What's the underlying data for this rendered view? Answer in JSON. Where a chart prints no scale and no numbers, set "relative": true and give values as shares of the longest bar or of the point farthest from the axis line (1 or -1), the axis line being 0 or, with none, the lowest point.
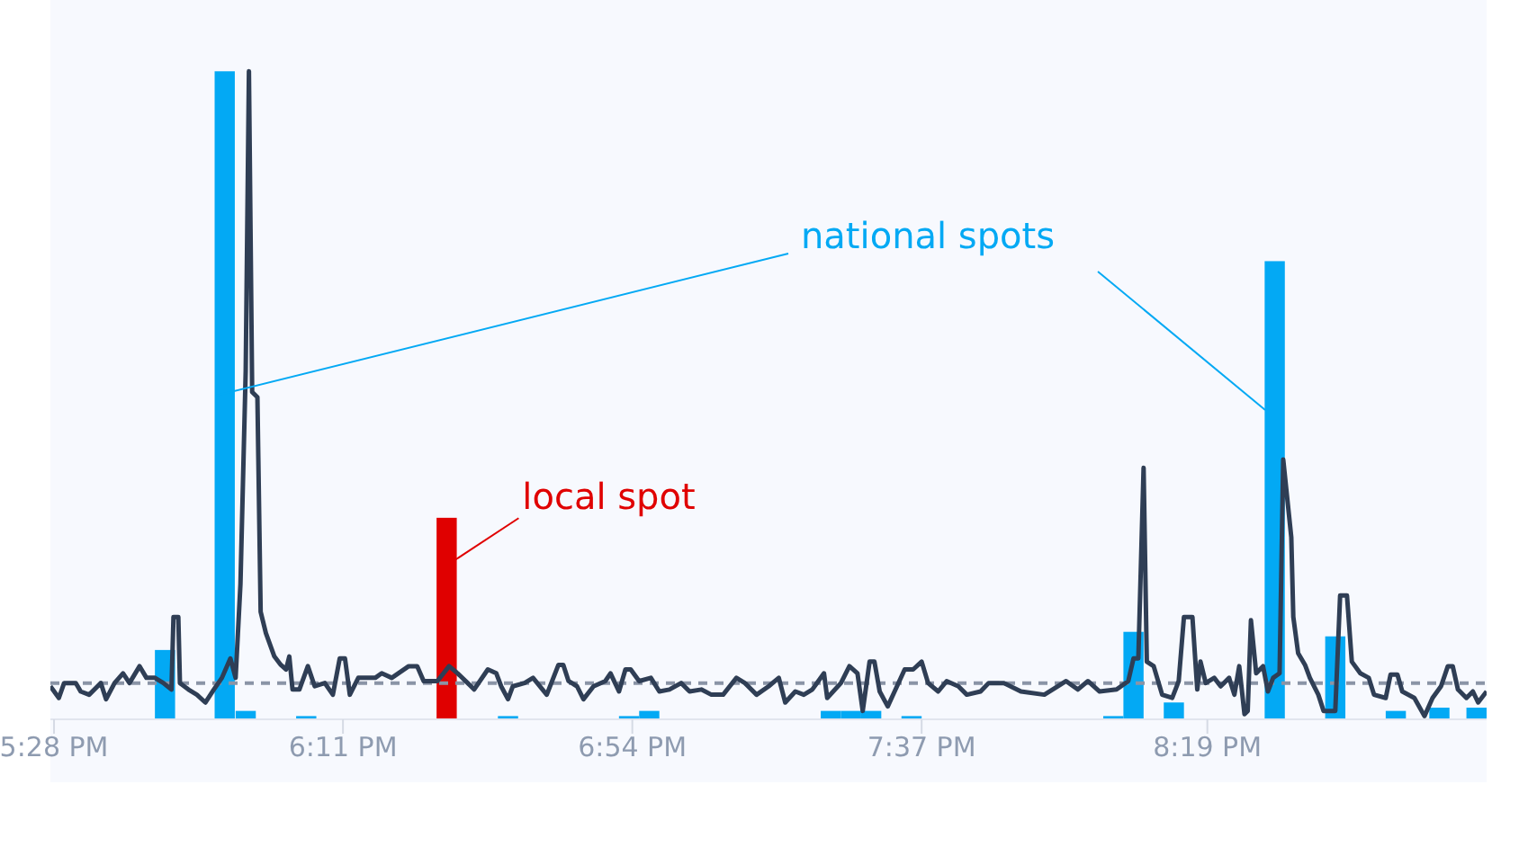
{
  "chart_data": {
    "type": "bar",
    "relative": true,
    "xlim": [
      17.458,
      21.017
    ],
    "xticks": [
      {
        "value": 17.467,
        "label": "5:28 PM"
      },
      {
        "value": 18.183,
        "label": "6:11 PM"
      },
      {
        "value": 18.9,
        "label": "6:54 PM"
      },
      {
        "value": 19.617,
        "label": "7:37 PM"
      },
      {
        "value": 20.325,
        "label": "8:19 PM"
      }
    ],
    "series": [
      {
        "x": [
          17.742,
          17.89,
          17.942,
          18.092,
          18.44,
          18.592,
          18.892,
          18.942,
          19.392,
          19.442,
          19.492,
          19.592,
          20.092,
          20.142,
          20.242,
          20.492,
          20.642,
          20.792,
          20.9,
          20.992
        ],
        "values": [
          0.107,
          1.0,
          0.013,
          0.005,
          0.311,
          0.005,
          0.005,
          0.013,
          0.013,
          0.013,
          0.013,
          0.005,
          0.005,
          0.135,
          0.026,
          0.707,
          0.128,
          0.013,
          0.018,
          0.018
        ],
        "colors": [
          "#03a9f4",
          "#03a9f4",
          "#03a9f4",
          "#03a9f4",
          "#e00000",
          "#03a9f4",
          "#03a9f4",
          "#03a9f4",
          "#03a9f4",
          "#03a9f4",
          "#03a9f4",
          "#03a9f4",
          "#03a9f4",
          "#03a9f4",
          "#03a9f4",
          "#03a9f4",
          "#03a9f4",
          "#03a9f4",
          "#03a9f4",
          "#03a9f4"
        ]
      },
      {
        "type": "line",
        "color": "#2f3e55",
        "x": [
          17.458,
          17.479,
          17.492,
          17.521,
          17.533,
          17.554,
          17.583,
          17.596,
          17.617,
          17.638,
          17.654,
          17.679,
          17.696,
          17.717,
          17.738,
          17.758,
          17.763,
          17.775,
          17.779,
          17.8,
          17.821,
          17.842,
          17.863,
          17.883,
          17.904,
          17.917,
          17.929,
          17.942,
          17.95,
          17.958,
          17.971,
          17.979,
          17.992,
          18.013,
          18.029,
          18.042,
          18.05,
          18.058,
          18.075,
          18.096,
          18.113,
          18.138,
          18.158,
          18.175,
          18.188,
          18.2,
          18.221,
          18.263,
          18.279,
          18.304,
          18.346,
          18.367,
          18.383,
          18.417,
          18.446,
          18.467,
          18.492,
          18.508,
          18.542,
          18.563,
          18.575,
          18.592,
          18.604,
          18.633,
          18.654,
          18.688,
          18.717,
          18.729,
          18.742,
          18.763,
          18.779,
          18.804,
          18.833,
          18.846,
          18.867,
          18.883,
          18.896,
          18.917,
          18.946,
          18.967,
          18.992,
          19.021,
          19.042,
          19.071,
          19.096,
          19.125,
          19.158,
          19.179,
          19.208,
          19.238,
          19.263,
          19.279,
          19.304,
          19.325,
          19.346,
          19.375,
          19.383,
          19.417,
          19.438,
          19.458,
          19.471,
          19.488,
          19.5,
          19.513,
          19.533,
          19.55,
          19.575,
          19.596,
          19.617,
          19.633,
          19.658,
          19.679,
          19.708,
          19.729,
          19.763,
          19.783,
          19.821,
          19.863,
          19.921,
          19.975,
          20.004,
          20.029,
          20.058,
          20.1,
          20.129,
          20.142,
          20.154,
          20.167,
          20.175,
          20.192,
          20.213,
          20.238,
          20.254,
          20.267,
          20.288,
          20.3,
          20.308,
          20.321,
          20.342,
          20.358,
          20.379,
          20.392,
          20.404,
          20.417,
          20.425,
          20.433,
          20.446,
          20.463,
          20.475,
          20.488,
          20.504,
          20.513,
          20.533,
          20.538,
          20.55,
          20.567,
          20.579,
          20.6,
          20.613,
          20.642,
          20.654,
          20.671,
          20.683,
          20.704,
          20.725,
          20.738,
          20.767,
          20.779,
          20.796,
          20.808,
          20.838,
          20.863,
          20.883,
          20.904,
          20.921,
          20.933,
          20.946,
          20.967,
          20.983,
          20.996,
          21.017
        ],
        "values": [
          0.051,
          0.033,
          0.056,
          0.056,
          0.043,
          0.038,
          0.056,
          0.031,
          0.056,
          0.071,
          0.056,
          0.082,
          0.064,
          0.064,
          0.056,
          0.046,
          0.158,
          0.158,
          0.056,
          0.046,
          0.038,
          0.026,
          0.046,
          0.064,
          0.094,
          0.064,
          0.209,
          0.538,
          1.0,
          0.505,
          0.497,
          0.166,
          0.133,
          0.097,
          0.084,
          0.077,
          0.097,
          0.046,
          0.046,
          0.082,
          0.051,
          0.056,
          0.038,
          0.094,
          0.094,
          0.038,
          0.064,
          0.064,
          0.071,
          0.064,
          0.082,
          0.082,
          0.059,
          0.059,
          0.082,
          0.071,
          0.056,
          0.046,
          0.077,
          0.071,
          0.051,
          0.031,
          0.051,
          0.056,
          0.064,
          0.038,
          0.084,
          0.084,
          0.059,
          0.051,
          0.031,
          0.051,
          0.059,
          0.071,
          0.043,
          0.077,
          0.077,
          0.059,
          0.064,
          0.043,
          0.046,
          0.056,
          0.043,
          0.046,
          0.038,
          0.038,
          0.064,
          0.056,
          0.038,
          0.051,
          0.064,
          0.026,
          0.043,
          0.038,
          0.046,
          0.071,
          0.033,
          0.056,
          0.082,
          0.071,
          0.013,
          0.089,
          0.089,
          0.043,
          0.02,
          0.043,
          0.077,
          0.077,
          0.089,
          0.056,
          0.043,
          0.059,
          0.051,
          0.038,
          0.043,
          0.056,
          0.056,
          0.043,
          0.038,
          0.059,
          0.046,
          0.059,
          0.043,
          0.046,
          0.059,
          0.094,
          0.094,
          0.388,
          0.089,
          0.082,
          0.038,
          0.033,
          0.059,
          0.158,
          0.158,
          0.046,
          0.089,
          0.056,
          0.064,
          0.051,
          0.064,
          0.038,
          0.082,
          0.008,
          0.013,
          0.153,
          0.071,
          0.082,
          0.043,
          0.064,
          0.071,
          0.401,
          0.281,
          0.158,
          0.102,
          0.084,
          0.064,
          0.038,
          0.013,
          0.013,
          0.191,
          0.191,
          0.089,
          0.071,
          0.064,
          0.038,
          0.033,
          0.069,
          0.069,
          0.043,
          0.033,
          0.005,
          0.033,
          0.051,
          0.082,
          0.082,
          0.046,
          0.033,
          0.043,
          0.026,
          0.043
        ]
      }
    ],
    "ref_lines": [
      {
        "axis": "y",
        "value": 0.056,
        "color": "#8a94a6",
        "line_style": "dashed"
      }
    ],
    "annotations": [
      "national spots",
      {
        "text": "local spot",
        "x": 18.44,
        "y": 0.311
      }
    ]
  }
}
